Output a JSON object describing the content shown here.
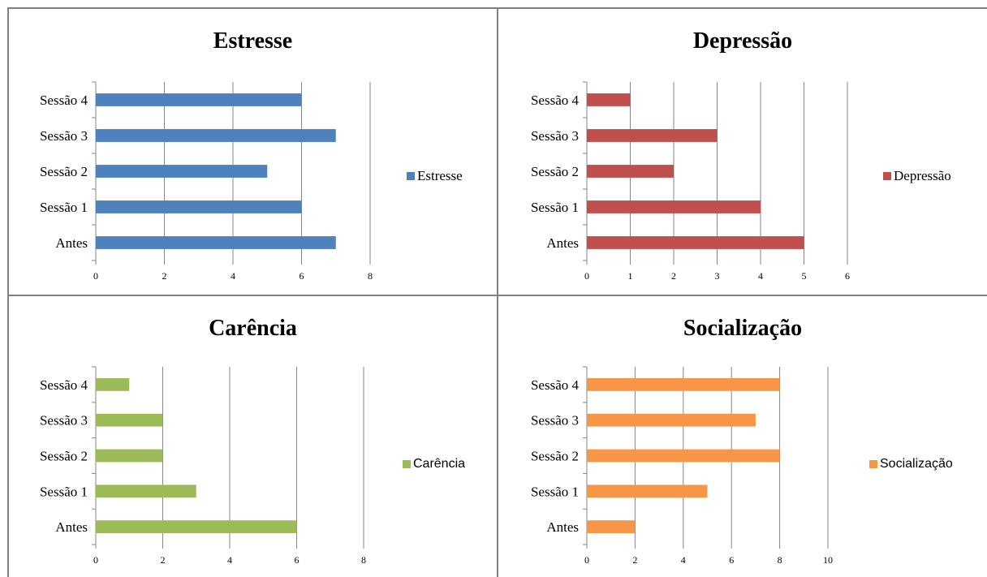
{
  "chart_data": [
    {
      "type": "bar",
      "orientation": "horizontal",
      "title": "Estresse",
      "categories": [
        "Antes",
        "Sessão 1",
        "Sessão 2",
        "Sessão 3",
        "Sessão 4"
      ],
      "series": [
        {
          "name": "Estresse",
          "values": [
            7,
            6,
            5,
            7,
            6
          ],
          "color": "#4f81bd"
        }
      ],
      "xlim": [
        0,
        8
      ],
      "xticks": [
        0,
        2,
        4,
        6,
        8
      ],
      "grid": true,
      "legend": "right"
    },
    {
      "type": "bar",
      "orientation": "horizontal",
      "title": "Depressão",
      "categories": [
        "Antes",
        "Sessão 1",
        "Sessão 2",
        "Sessão 3",
        "Sessão 4"
      ],
      "series": [
        {
          "name": "Depressão",
          "values": [
            5,
            4,
            2,
            3,
            1
          ],
          "color": "#c0504d"
        }
      ],
      "xlim": [
        0,
        6
      ],
      "xticks": [
        0,
        1,
        2,
        3,
        4,
        5,
        6
      ],
      "grid": true,
      "legend": "right"
    },
    {
      "type": "bar",
      "orientation": "horizontal",
      "title": "Carência",
      "categories": [
        "Antes",
        "Sessão 1",
        "Sessão 2",
        "Sessão 3",
        "Sessão 4"
      ],
      "series": [
        {
          "name": "Carência",
          "values": [
            6,
            3,
            2,
            2,
            1
          ],
          "color": "#9bbb59"
        }
      ],
      "xlim": [
        0,
        8
      ],
      "xticks": [
        0,
        2,
        4,
        6,
        8
      ],
      "grid": true,
      "legend": "right"
    },
    {
      "type": "bar",
      "orientation": "horizontal",
      "title": "Socialização",
      "categories": [
        "Antes",
        "Sessão 1",
        "Sessão 2",
        "Sessão 3",
        "Sessão 4"
      ],
      "series": [
        {
          "name": "Socialização",
          "values": [
            2,
            5,
            8,
            7,
            8
          ],
          "color": "#f79646"
        }
      ],
      "xlim": [
        0,
        10
      ],
      "xticks": [
        0,
        2,
        4,
        6,
        8,
        10
      ],
      "grid": true,
      "legend": "right"
    }
  ]
}
